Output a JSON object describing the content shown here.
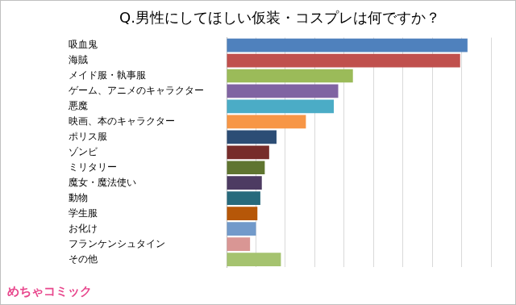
{
  "chart_data": {
    "type": "bar",
    "orientation": "horizontal",
    "title": "Q.男性にしてほしい仮装・コスプレは何ですか？",
    "categories": [
      "吸血鬼",
      "海賊",
      "メイド服・執事服",
      "ゲーム、アニメのキャラクター",
      "悪魔",
      "映画、本のキャラクター",
      "ポリス服",
      "ゾンビ",
      "ミリタリー",
      "魔女・魔法使い",
      "動物",
      "学生服",
      "お化け",
      "フランケンシュタイン",
      "その他"
    ],
    "values": [
      16.4,
      15.9,
      8.6,
      7.6,
      7.3,
      5.4,
      3.4,
      2.9,
      2.6,
      2.4,
      2.3,
      2.1,
      2.0,
      1.6,
      3.7
    ],
    "colors": [
      "#4f81bd",
      "#c0504d",
      "#9bbb59",
      "#8064a2",
      "#4bacc6",
      "#f79646",
      "#2c4d75",
      "#772c2a",
      "#5f7530",
      "#4d3b62",
      "#276a7c",
      "#b65708",
      "#729aca",
      "#d99694",
      "#a5c36f"
    ],
    "xlim": [
      0,
      18
    ],
    "xticks": [
      0,
      2,
      4,
      6,
      8,
      10,
      12,
      14,
      16,
      18
    ],
    "grid": true,
    "tick_labels": "y",
    "annotations": [
      "めちゃコミック"
    ]
  }
}
